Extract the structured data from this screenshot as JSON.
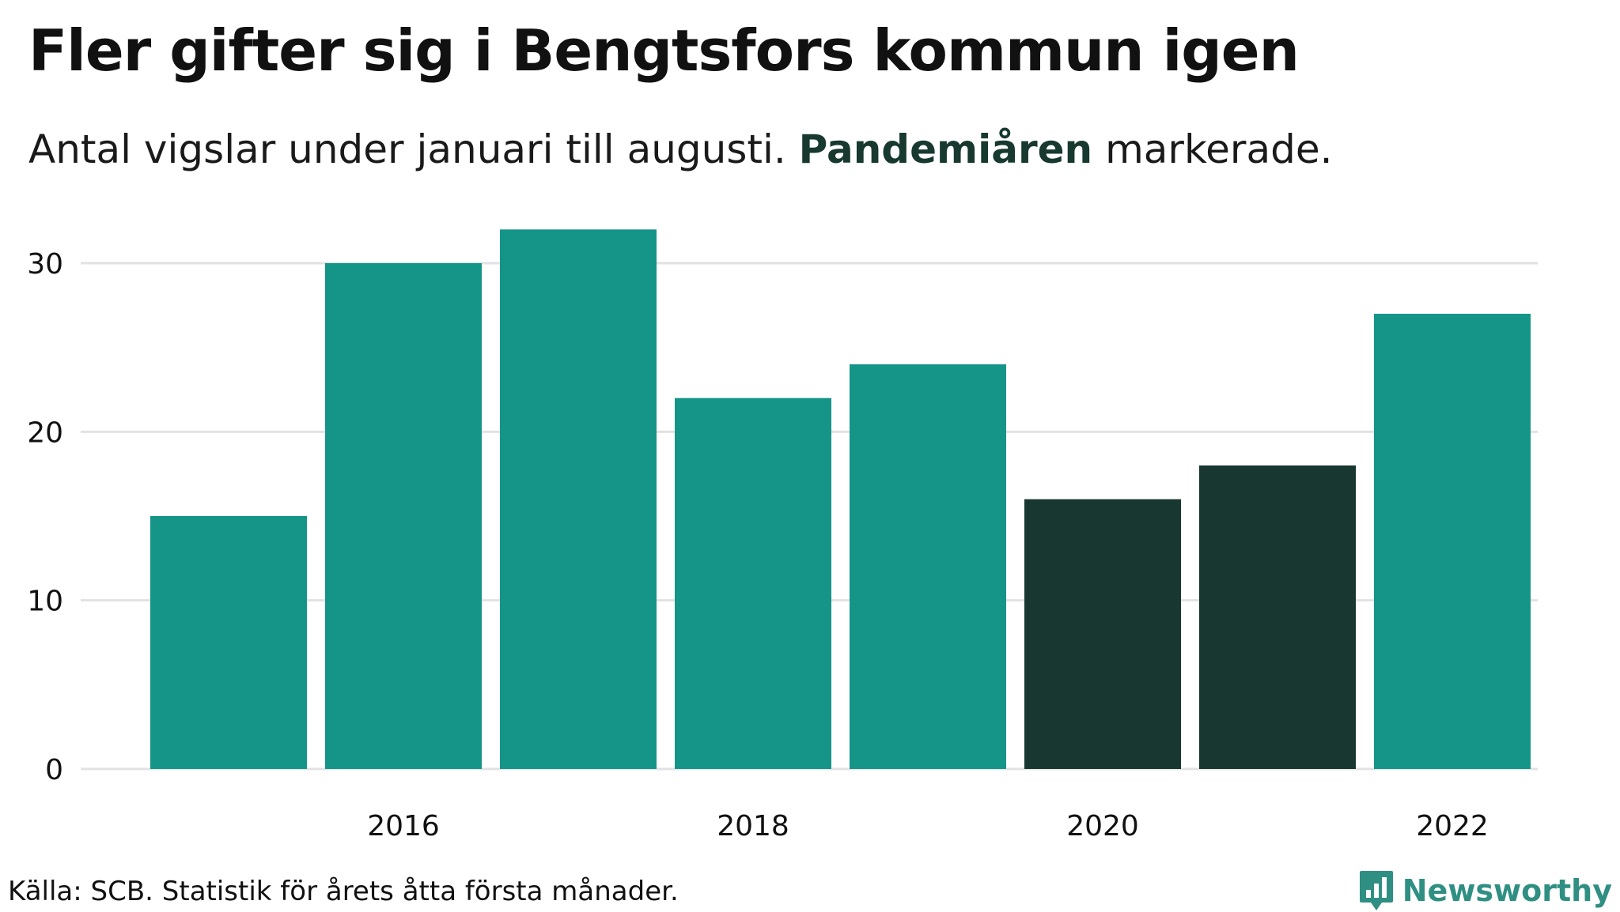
{
  "title": "Fler gifter sig i Bengtsfors kommun igen",
  "subtitle": {
    "before": "Antal vigslar under januari till augusti.",
    "highlight": "Pandemiåren",
    "after": "markerade."
  },
  "colors": {
    "normal": "#149588",
    "pandemic": "#183730",
    "grid": "#e2e2e4",
    "text": "#111111",
    "brand": "#2f8f83"
  },
  "chart_data": {
    "type": "bar",
    "title": "Fler gifter sig i Bengtsfors kommun igen",
    "subtitle": "Antal vigslar under januari till augusti. Pandemiåren markerade.",
    "categories": [
      "2015",
      "2016",
      "2017",
      "2018",
      "2019",
      "2020",
      "2021",
      "2022"
    ],
    "values": [
      15,
      30,
      32,
      22,
      24,
      16,
      18,
      27
    ],
    "highlighted": [
      "2020",
      "2021"
    ],
    "highlight_label": "Pandemiåren",
    "x_tick_labels": [
      "2016",
      "2018",
      "2020",
      "2022"
    ],
    "y_ticks": [
      0,
      10,
      20,
      30
    ],
    "ylim": [
      0,
      32
    ],
    "xlabel": "",
    "ylabel": "",
    "grid": true
  },
  "footer": {
    "source": "Källa: SCB. Statistik för årets åtta första månader.",
    "brand": "Newsworthy",
    "brand_icon": "newsworthy-logo-icon"
  }
}
